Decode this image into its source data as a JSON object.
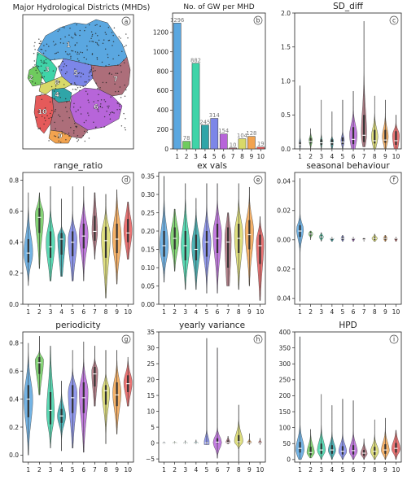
{
  "figure": {
    "district_colors": [
      "#5aa7e0",
      "#6fcb5e",
      "#3fd4a8",
      "#2fa5a8",
      "#7c86e8",
      "#b765d9",
      "#ad6e7a",
      "#d9d968",
      "#f2a34f",
      "#e55a5a"
    ],
    "map_panel": {
      "title": "Major Hydrological Districts (MHDs)",
      "letter": "a",
      "region_labels": [
        "1",
        "2",
        "3",
        "4",
        "5",
        "6",
        "7",
        "8",
        "9",
        "10"
      ]
    }
  },
  "chart_data": [
    {
      "id": "b",
      "type": "bar",
      "title": "No. of GW per MHD",
      "letter": "b",
      "categories": [
        "1",
        "2",
        "3",
        "4",
        "5",
        "6",
        "7",
        "8",
        "9",
        "10"
      ],
      "values": [
        1296,
        78,
        882,
        245,
        314,
        154,
        10,
        104,
        128,
        19
      ],
      "value_labels": [
        "1296",
        "78",
        "882",
        "245",
        "314",
        "154",
        "10",
        "104",
        "128",
        "19"
      ],
      "ylim": [
        0,
        1400
      ],
      "yticks": [
        0,
        200,
        400,
        600,
        800,
        1000,
        1200
      ],
      "ytick_labels": [
        "0",
        "200",
        "400",
        "600",
        "800",
        "1000",
        "1200"
      ],
      "grid": false
    },
    {
      "id": "c",
      "type": "violin",
      "title": "SD_diff",
      "letter": "c",
      "categories": [
        "1",
        "2",
        "3",
        "4",
        "5",
        "6",
        "7",
        "8",
        "9",
        "10"
      ],
      "ylim": [
        0,
        2
      ],
      "yticks": [
        0,
        0.5,
        1,
        1.5,
        2
      ],
      "ytick_labels": [
        "0.0",
        "0.5",
        "1.0",
        "1.5",
        "2.0"
      ],
      "series": [
        {
          "min": 0.0,
          "max": 0.93,
          "median": 0.06,
          "q1": 0.04,
          "q3": 0.1,
          "width": 0.15,
          "peak": 0.08
        },
        {
          "min": 0.0,
          "max": 0.3,
          "median": 0.11,
          "q1": 0.08,
          "q3": 0.16,
          "width": 0.32,
          "peak": 0.12
        },
        {
          "min": 0.0,
          "max": 0.72,
          "median": 0.09,
          "q1": 0.06,
          "q3": 0.14,
          "width": 0.22,
          "peak": 0.1
        },
        {
          "min": 0.0,
          "max": 0.55,
          "median": 0.09,
          "q1": 0.06,
          "q3": 0.14,
          "width": 0.28,
          "peak": 0.12
        },
        {
          "min": 0.0,
          "max": 0.72,
          "median": 0.1,
          "q1": 0.07,
          "q3": 0.17,
          "width": 0.32,
          "peak": 0.12
        },
        {
          "min": 0.0,
          "max": 0.85,
          "median": 0.14,
          "q1": 0.07,
          "q3": 0.32,
          "width": 0.7,
          "peak": 0.2
        },
        {
          "min": 0.03,
          "max": 1.88,
          "median": 0.2,
          "q1": 0.1,
          "q3": 0.5,
          "width": 0.5,
          "peak": 0.22
        },
        {
          "min": 0.0,
          "max": 0.78,
          "median": 0.12,
          "q1": 0.08,
          "q3": 0.28,
          "width": 0.6,
          "peak": 0.18
        },
        {
          "min": 0.0,
          "max": 0.72,
          "median": 0.13,
          "q1": 0.09,
          "q3": 0.28,
          "width": 0.55,
          "peak": 0.18
        },
        {
          "min": 0.0,
          "max": 0.5,
          "median": 0.12,
          "q1": 0.06,
          "q3": 0.26,
          "width": 0.65,
          "peak": 0.2
        }
      ]
    },
    {
      "id": "d",
      "type": "violin",
      "title": "range_ratio",
      "letter": "d",
      "categories": [
        "1",
        "2",
        "3",
        "4",
        "5",
        "6",
        "7",
        "8",
        "9",
        "10"
      ],
      "ylim": [
        0,
        0.85
      ],
      "yticks": [
        0,
        0.2,
        0.4,
        0.6,
        0.8
      ],
      "ytick_labels": [
        "0.0",
        "0.2",
        "0.4",
        "0.6",
        "0.8"
      ],
      "series": [
        {
          "min": 0.12,
          "max": 0.72,
          "median": 0.33,
          "q1": 0.27,
          "q3": 0.42,
          "width": 0.8,
          "peak": 0.33
        },
        {
          "min": 0.23,
          "max": 0.72,
          "median": 0.56,
          "q1": 0.46,
          "q3": 0.62,
          "width": 0.75,
          "peak": 0.58
        },
        {
          "min": 0.15,
          "max": 0.76,
          "median": 0.37,
          "q1": 0.3,
          "q3": 0.47,
          "width": 0.8,
          "peak": 0.4
        },
        {
          "min": 0.18,
          "max": 0.68,
          "median": 0.42,
          "q1": 0.32,
          "q3": 0.46,
          "width": 0.7,
          "peak": 0.44
        },
        {
          "min": 0.15,
          "max": 0.76,
          "median": 0.4,
          "q1": 0.31,
          "q3": 0.47,
          "width": 0.8,
          "peak": 0.42
        },
        {
          "min": 0.15,
          "max": 0.76,
          "median": 0.44,
          "q1": 0.36,
          "q3": 0.52,
          "width": 0.8,
          "peak": 0.45
        },
        {
          "min": 0.29,
          "max": 0.72,
          "median": 0.47,
          "q1": 0.41,
          "q3": 0.57,
          "width": 0.5,
          "peak": 0.47
        },
        {
          "min": 0.04,
          "max": 0.71,
          "median": 0.41,
          "q1": 0.3,
          "q3": 0.5,
          "width": 0.8,
          "peak": 0.44
        },
        {
          "min": 0.13,
          "max": 0.74,
          "median": 0.42,
          "q1": 0.33,
          "q3": 0.52,
          "width": 0.8,
          "peak": 0.43
        },
        {
          "min": 0.29,
          "max": 0.66,
          "median": 0.46,
          "q1": 0.4,
          "q3": 0.55,
          "width": 0.75,
          "peak": 0.48
        }
      ]
    },
    {
      "id": "e",
      "type": "violin",
      "title": "ex vals",
      "letter": "e",
      "categories": [
        "1",
        "2",
        "3",
        "4",
        "5",
        "6",
        "7",
        "8",
        "9",
        "10"
      ],
      "ylim": [
        0,
        0.36
      ],
      "yticks": [
        0,
        0.05,
        0.1,
        0.15,
        0.2,
        0.25,
        0.3,
        0.35
      ],
      "ytick_labels": [
        "0.00",
        "0.05",
        "0.10",
        "0.15",
        "0.20",
        "0.25",
        "0.30",
        "0.35"
      ],
      "series": [
        {
          "min": 0.06,
          "max": 0.35,
          "median": 0.16,
          "q1": 0.13,
          "q3": 0.2,
          "width": 0.8,
          "peak": 0.16
        },
        {
          "min": 0.09,
          "max": 0.26,
          "median": 0.18,
          "q1": 0.15,
          "q3": 0.21,
          "width": 0.8,
          "peak": 0.18
        },
        {
          "min": 0.04,
          "max": 0.33,
          "median": 0.16,
          "q1": 0.12,
          "q3": 0.2,
          "width": 0.8,
          "peak": 0.16
        },
        {
          "min": 0.04,
          "max": 0.29,
          "median": 0.15,
          "q1": 0.12,
          "q3": 0.19,
          "width": 0.8,
          "peak": 0.16
        },
        {
          "min": 0.03,
          "max": 0.33,
          "median": 0.17,
          "q1": 0.13,
          "q3": 0.2,
          "width": 0.8,
          "peak": 0.17
        },
        {
          "min": 0.03,
          "max": 0.33,
          "median": 0.18,
          "q1": 0.14,
          "q3": 0.22,
          "width": 0.8,
          "peak": 0.19
        },
        {
          "min": 0.05,
          "max": 0.25,
          "median": 0.17,
          "q1": 0.1,
          "q3": 0.21,
          "width": 0.6,
          "peak": 0.18
        },
        {
          "min": 0.04,
          "max": 0.33,
          "median": 0.18,
          "q1": 0.14,
          "q3": 0.22,
          "width": 0.8,
          "peak": 0.19
        },
        {
          "min": 0.05,
          "max": 0.32,
          "median": 0.19,
          "q1": 0.15,
          "q3": 0.23,
          "width": 0.8,
          "peak": 0.2
        },
        {
          "min": 0.01,
          "max": 0.24,
          "median": 0.16,
          "q1": 0.11,
          "q3": 0.19,
          "width": 0.7,
          "peak": 0.17
        }
      ]
    },
    {
      "id": "f",
      "type": "violin",
      "title": "seasonal behaviour",
      "letter": "f",
      "categories": [
        "1",
        "2",
        "3",
        "4",
        "5",
        "6",
        "7",
        "8",
        "9",
        "10"
      ],
      "ylim": [
        -0.044,
        0.046
      ],
      "yticks": [
        -0.04,
        -0.02,
        0,
        0.02,
        0.04
      ],
      "ytick_labels": [
        "0.04",
        "0.02",
        "0.00",
        "0.02",
        "0.04"
      ],
      "series": [
        {
          "min": -0.042,
          "max": 0.042,
          "median": 0.006,
          "q1": 0.002,
          "q3": 0.01,
          "width": 0.65,
          "peak": 0.007
        },
        {
          "min": 0.0,
          "max": 0.006,
          "median": 0.004,
          "q1": 0.003,
          "q3": 0.005,
          "width": 0.4,
          "peak": 0.004
        },
        {
          "min": -0.001,
          "max": 0.005,
          "median": 0.002,
          "q1": 0.001,
          "q3": 0.003,
          "width": 0.4,
          "peak": 0.002
        },
        {
          "min": -0.001,
          "max": 0.002,
          "median": 0.001,
          "q1": 0.0,
          "q3": 0.001,
          "width": 0.35,
          "peak": 0.001
        },
        {
          "min": -0.001,
          "max": 0.003,
          "median": 0.001,
          "q1": 0.0,
          "q3": 0.002,
          "width": 0.3,
          "peak": 0.001
        },
        {
          "min": -0.001,
          "max": 0.002,
          "median": 0.001,
          "q1": 0.0,
          "q3": 0.001,
          "width": 0.3,
          "peak": 0.001
        },
        {
          "min": -0.001,
          "max": 0.001,
          "median": 0.0,
          "q1": 0.0,
          "q3": 0.001,
          "width": 0.25,
          "peak": 0.0
        },
        {
          "min": -0.001,
          "max": 0.004,
          "median": 0.001,
          "q1": 0.0,
          "q3": 0.002,
          "width": 0.5,
          "peak": 0.001
        },
        {
          "min": -0.001,
          "max": 0.003,
          "median": 0.001,
          "q1": 0.0,
          "q3": 0.002,
          "width": 0.35,
          "peak": 0.001
        },
        {
          "min": -0.001,
          "max": 0.002,
          "median": 0.001,
          "q1": 0.0,
          "q3": 0.001,
          "width": 0.3,
          "peak": 0.001
        }
      ]
    },
    {
      "id": "g",
      "type": "violin",
      "title": "periodicity",
      "letter": "g",
      "categories": [
        "1",
        "2",
        "3",
        "4",
        "5",
        "6",
        "7",
        "8",
        "9",
        "10"
      ],
      "ylim": [
        -0.05,
        0.88
      ],
      "yticks": [
        0,
        0.2,
        0.4,
        0.6,
        0.8
      ],
      "ytick_labels": [
        "0.0",
        "0.2",
        "0.4",
        "0.6",
        "0.8"
      ],
      "series": [
        {
          "min": 0.0,
          "max": 0.8,
          "median": 0.4,
          "q1": 0.27,
          "q3": 0.5,
          "width": 0.8,
          "peak": 0.4
        },
        {
          "min": 0.43,
          "max": 0.85,
          "median": 0.66,
          "q1": 0.58,
          "q3": 0.7,
          "width": 0.75,
          "peak": 0.68
        },
        {
          "min": 0.05,
          "max": 0.78,
          "median": 0.32,
          "q1": 0.22,
          "q3": 0.45,
          "width": 0.7,
          "peak": 0.3
        },
        {
          "min": 0.03,
          "max": 0.53,
          "median": 0.28,
          "q1": 0.23,
          "q3": 0.33,
          "width": 0.75,
          "peak": 0.28
        },
        {
          "min": 0.05,
          "max": 0.75,
          "median": 0.41,
          "q1": 0.3,
          "q3": 0.5,
          "width": 0.8,
          "peak": 0.45
        },
        {
          "min": 0.02,
          "max": 0.81,
          "median": 0.41,
          "q1": 0.3,
          "q3": 0.52,
          "width": 0.8,
          "peak": 0.45
        },
        {
          "min": 0.35,
          "max": 0.78,
          "median": 0.58,
          "q1": 0.49,
          "q3": 0.63,
          "width": 0.55,
          "peak": 0.6
        },
        {
          "min": 0.08,
          "max": 0.75,
          "median": 0.46,
          "q1": 0.36,
          "q3": 0.5,
          "width": 0.7,
          "peak": 0.46
        },
        {
          "min": 0.15,
          "max": 0.75,
          "median": 0.43,
          "q1": 0.35,
          "q3": 0.52,
          "width": 0.75,
          "peak": 0.45
        },
        {
          "min": 0.35,
          "max": 0.7,
          "median": 0.51,
          "q1": 0.45,
          "q3": 0.57,
          "width": 0.75,
          "peak": 0.52
        }
      ]
    },
    {
      "id": "h",
      "type": "violin",
      "title": "yearly variance",
      "letter": "h",
      "categories": [
        "1",
        "2",
        "3",
        "4",
        "5",
        "6",
        "7",
        "8",
        "9",
        "10"
      ],
      "ylim": [
        -6,
        35
      ],
      "yticks": [
        -5,
        0,
        5,
        10,
        15,
        20,
        25,
        30,
        35
      ],
      "ytick_labels": [
        "−5",
        "0",
        "5",
        "10",
        "15",
        "20",
        "25",
        "30",
        "35"
      ],
      "series": [
        {
          "min": -0.2,
          "max": 0.4,
          "median": 0.0,
          "q1": -0.05,
          "q3": 0.1,
          "width": 0.35,
          "peak": 0.0
        },
        {
          "min": -0.2,
          "max": 0.5,
          "median": 0.05,
          "q1": 0.0,
          "q3": 0.15,
          "width": 0.4,
          "peak": 0.05
        },
        {
          "min": -0.3,
          "max": 0.8,
          "median": 0.05,
          "q1": 0.0,
          "q3": 0.15,
          "width": 0.4,
          "peak": 0.05
        },
        {
          "min": -0.3,
          "max": 1.0,
          "median": 0.05,
          "q1": 0.0,
          "q3": 0.2,
          "width": 0.4,
          "peak": 0.05
        },
        {
          "min": -0.5,
          "max": 33,
          "median": 0.1,
          "q1": 0.0,
          "q3": 0.4,
          "width": 0.5,
          "peak": 0.1
        },
        {
          "min": -4.8,
          "max": 30,
          "median": 0.3,
          "q1": 0.0,
          "q3": 1.5,
          "width": 0.8,
          "peak": 0.2
        },
        {
          "min": -0.3,
          "max": 2.2,
          "median": 0.2,
          "q1": 0.0,
          "q3": 0.8,
          "width": 0.4,
          "peak": 0.2
        },
        {
          "min": -5.8,
          "max": 12,
          "median": 0.4,
          "q1": 0.0,
          "q3": 2.5,
          "width": 0.8,
          "peak": 0.4
        },
        {
          "min": -0.5,
          "max": 3.0,
          "median": 0.1,
          "q1": 0.0,
          "q3": 0.5,
          "width": 0.4,
          "peak": 0.1
        },
        {
          "min": -0.5,
          "max": 1.5,
          "median": 0.1,
          "q1": 0.0,
          "q3": 0.4,
          "width": 0.35,
          "peak": 0.1
        }
      ]
    },
    {
      "id": "i",
      "type": "violin",
      "title": "HPD",
      "letter": "i",
      "categories": [
        "1",
        "2",
        "3",
        "4",
        "5",
        "6",
        "7",
        "8",
        "9",
        "10"
      ],
      "ylim": [
        -8,
        400
      ],
      "yticks": [
        0,
        50,
        100,
        150,
        200,
        250,
        300,
        350,
        400
      ],
      "ytick_labels": [
        "0",
        "50",
        "100",
        "150",
        "200",
        "250",
        "300",
        "350",
        "400"
      ],
      "series": [
        {
          "min": 0,
          "max": 385,
          "median": 35,
          "q1": 22,
          "q3": 55,
          "width": 0.8,
          "peak": 30
        },
        {
          "min": 5,
          "max": 95,
          "median": 22,
          "q1": 14,
          "q3": 40,
          "width": 0.7,
          "peak": 22
        },
        {
          "min": 0,
          "max": 205,
          "median": 30,
          "q1": 18,
          "q3": 50,
          "width": 0.75,
          "peak": 28
        },
        {
          "min": 0,
          "max": 170,
          "median": 30,
          "q1": 18,
          "q3": 45,
          "width": 0.7,
          "peak": 28
        },
        {
          "min": 0,
          "max": 190,
          "median": 26,
          "q1": 16,
          "q3": 42,
          "width": 0.75,
          "peak": 25
        },
        {
          "min": 0,
          "max": 185,
          "median": 28,
          "q1": 16,
          "q3": 45,
          "width": 0.75,
          "peak": 26
        },
        {
          "min": 0,
          "max": 65,
          "median": 20,
          "q1": 12,
          "q3": 30,
          "width": 0.6,
          "peak": 18
        },
        {
          "min": 0,
          "max": 125,
          "median": 26,
          "q1": 15,
          "q3": 40,
          "width": 0.75,
          "peak": 25
        },
        {
          "min": 0,
          "max": 130,
          "median": 30,
          "q1": 18,
          "q3": 48,
          "width": 0.75,
          "peak": 28
        },
        {
          "min": 0,
          "max": 92,
          "median": 35,
          "q1": 22,
          "q3": 52,
          "width": 0.8,
          "peak": 33
        }
      ]
    }
  ]
}
